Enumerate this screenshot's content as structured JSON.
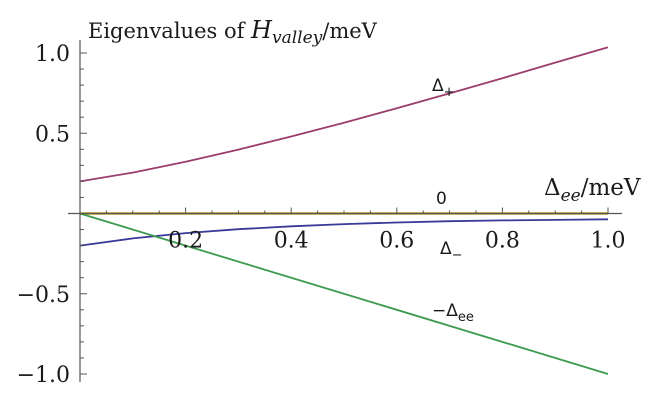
{
  "chart_data": {
    "type": "line",
    "title_parts": {
      "prefix": "Eigenvalues of ",
      "var": "H",
      "sub": "valley",
      "suffix": "/meV"
    },
    "xlabel_parts": {
      "var": "Δ",
      "sub": "ee",
      "suffix": "/meV"
    },
    "xlim": [
      0,
      1.0
    ],
    "ylim": [
      -1.0,
      1.0
    ],
    "x_ticks": [
      0.2,
      0.4,
      0.6,
      0.8,
      1.0
    ],
    "x_tick_labels": [
      "0.2",
      "0.4",
      "0.6",
      "0.8",
      "1.0"
    ],
    "y_ticks": [
      -1.0,
      -0.5,
      0.5,
      1.0
    ],
    "y_tick_labels": [
      "−1.0",
      "−0.5",
      "0.5",
      "1.0"
    ],
    "grid": false,
    "series": [
      {
        "label_main": "Δ",
        "label_sub": "+",
        "color": "#9b3e6e",
        "x": [
          0,
          0.1,
          0.2,
          0.3,
          0.4,
          0.5,
          0.6,
          0.7,
          0.8,
          0.9,
          1.0
        ],
        "y": [
          0.2,
          0.255,
          0.322,
          0.398,
          0.48,
          0.566,
          0.656,
          0.748,
          0.843,
          0.94,
          1.036
        ]
      },
      {
        "label_main": "0",
        "label_sub": "",
        "color": "#c4a020",
        "x": [
          0,
          1.0
        ],
        "y": [
          0,
          0
        ]
      },
      {
        "label_main": "Δ",
        "label_sub": "−",
        "color": "#3a3a9a",
        "x": [
          0,
          0.1,
          0.2,
          0.3,
          0.4,
          0.5,
          0.6,
          0.7,
          0.8,
          0.9,
          1.0
        ],
        "y": [
          -0.2,
          -0.155,
          -0.122,
          -0.098,
          -0.08,
          -0.066,
          -0.056,
          -0.048,
          -0.043,
          -0.04,
          -0.036
        ]
      },
      {
        "label_main": "−Δ",
        "label_sub": "ee",
        "color": "#3c9b4e",
        "x": [
          0,
          1.0
        ],
        "y": [
          0,
          -1.0
        ]
      }
    ]
  }
}
